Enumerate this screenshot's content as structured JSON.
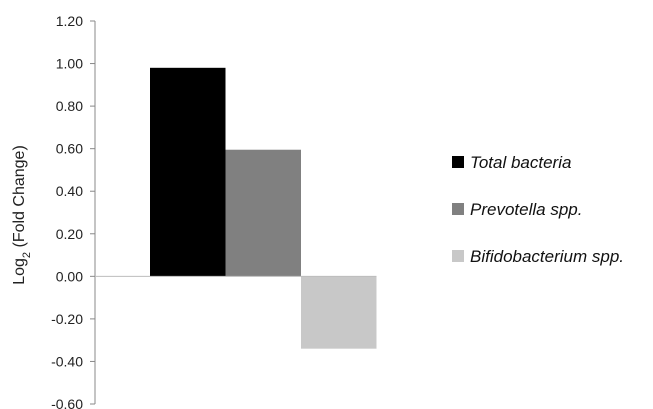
{
  "chart_data": {
    "type": "bar",
    "ylabel_main": "Log",
    "ylabel_sub": "2",
    "ylabel_rest": " (Fold Change)",
    "ylim": [
      -0.6,
      1.2
    ],
    "yticks": [
      1.2,
      1.0,
      0.8,
      0.6,
      0.4,
      0.2,
      0.0,
      -0.2,
      -0.4,
      -0.6
    ],
    "ytick_labels": [
      "1.20",
      "1.00",
      "0.80",
      "0.60",
      "0.40",
      "0.20",
      "0.00",
      "-0.20",
      "-0.40",
      "-0.60"
    ],
    "grid": false,
    "legend_position": "right",
    "series": [
      {
        "name": "Total bacteria",
        "value": 0.98,
        "color": "#000000"
      },
      {
        "name": "Prevotella spp.",
        "value": 0.595,
        "color": "#808080"
      },
      {
        "name": "Bifidobacterium spp.",
        "value": -0.34,
        "color": "#c8c8c8"
      }
    ]
  }
}
